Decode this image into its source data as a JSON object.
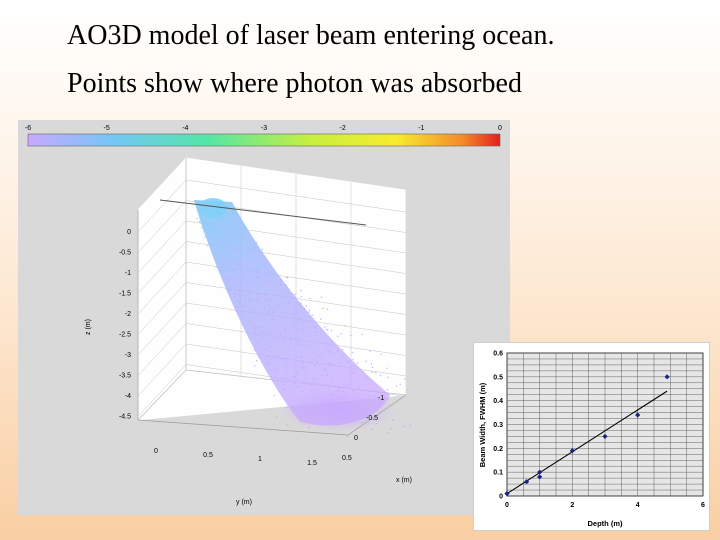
{
  "title": {
    "line1": "AO3D model of laser beam entering ocean.",
    "line2": "Points show where photon was absorbed"
  },
  "colorbar": {
    "ticks": [
      "-6",
      "-5",
      "-4",
      "-3",
      "-2",
      "-1",
      "0"
    ],
    "colors": [
      "#c9a8ff",
      "#74c7f5",
      "#54e6a6",
      "#c7ef3e",
      "#f7ec2e",
      "#f48b2a",
      "#e3201c"
    ]
  },
  "chart_data": [
    {
      "type": "scatter",
      "title": "",
      "xlabel": "x (m)",
      "ylabel": "y (m)",
      "zlabel": "z (m)",
      "z_ticks": [
        "0",
        "-0.5",
        "-1",
        "-1.5",
        "-2",
        "-2.5",
        "-3",
        "-3.5",
        "-4",
        "-4.5"
      ],
      "y_ticks": [
        "0",
        "0.5",
        "1",
        "1.5"
      ],
      "x_ticks": [
        "-1",
        "-0.5",
        "0",
        "0.5"
      ],
      "point_colors": [
        "#8fd0f7",
        "#c6a8ff"
      ]
    },
    {
      "type": "scatter",
      "xlabel": "Depth (m)",
      "ylabel": "Beam Width, FWHM (m)",
      "xlim": [
        0,
        6
      ],
      "ylim": [
        0,
        0.6
      ],
      "x_ticks": [
        "0",
        "2",
        "4",
        "6"
      ],
      "y_ticks": [
        "0",
        "0.1",
        "0.2",
        "0.3",
        "0.4",
        "0.5",
        "0.6"
      ],
      "points": [
        {
          "x": 0,
          "y": 0.01
        },
        {
          "x": 0.6,
          "y": 0.06
        },
        {
          "x": 1.0,
          "y": 0.08
        },
        {
          "x": 1.0,
          "y": 0.1
        },
        {
          "x": 2.0,
          "y": 0.19
        },
        {
          "x": 3.0,
          "y": 0.25
        },
        {
          "x": 4.0,
          "y": 0.34
        },
        {
          "x": 4.9,
          "y": 0.5
        }
      ],
      "trendline": {
        "x": [
          0,
          4.9
        ],
        "y": [
          0.01,
          0.44
        ]
      },
      "marker_color": "#1a237e"
    }
  ]
}
